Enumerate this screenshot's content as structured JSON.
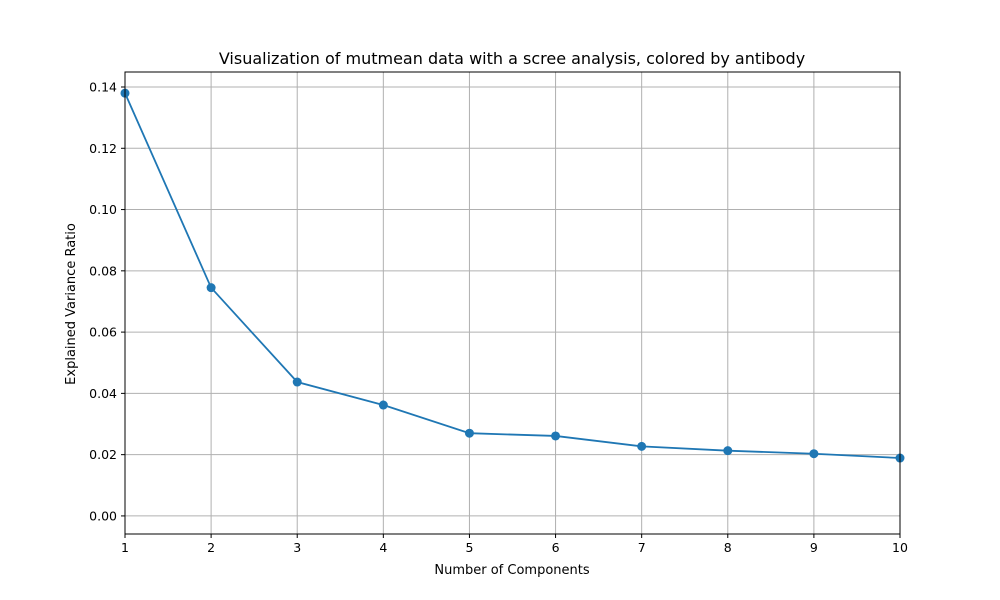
{
  "chart_data": {
    "type": "line",
    "title": "Visualization of mutmean data with a scree analysis, colored by antibody",
    "xlabel": "Number of Components",
    "ylabel": "Explained Variance Ratio",
    "x": [
      1,
      2,
      3,
      4,
      5,
      6,
      7,
      8,
      9,
      10
    ],
    "series": [
      {
        "values": [
          0.138,
          0.0745,
          0.0437,
          0.0362,
          0.027,
          0.0261,
          0.0227,
          0.0213,
          0.0203,
          0.0189
        ],
        "color": "#1f77b4",
        "marker": "circle"
      }
    ],
    "xlim": [
      1,
      10
    ],
    "ylim": [
      -0.0059,
      0.1449
    ],
    "xticks": [
      "1",
      "2",
      "3",
      "4",
      "5",
      "6",
      "7",
      "8",
      "9",
      "10"
    ],
    "yticks": [
      "0.00",
      "0.02",
      "0.04",
      "0.06",
      "0.08",
      "0.10",
      "0.12",
      "0.14"
    ],
    "grid": true
  }
}
